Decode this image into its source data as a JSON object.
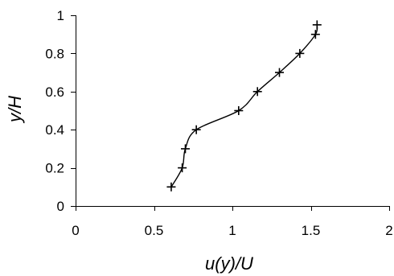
{
  "chart_data": {
    "type": "line",
    "xlabel": "u(y)/U",
    "ylabel": "y/H",
    "xlim": [
      0,
      2
    ],
    "ylim": [
      0,
      1
    ],
    "x_ticks": [
      "0",
      "0.5",
      "1",
      "1.5",
      "2"
    ],
    "y_ticks": [
      "0",
      "0.2",
      "0.4",
      "0.6",
      "0.8",
      "1"
    ],
    "grid": false,
    "legend": "none",
    "marker": "plus",
    "line_style": "smooth",
    "series": [
      {
        "x": [
          0.61,
          0.68,
          0.7,
          0.77,
          1.04,
          1.16,
          1.3,
          1.43,
          1.53,
          1.54
        ],
        "y": [
          0.1,
          0.2,
          0.3,
          0.4,
          0.5,
          0.6,
          0.7,
          0.8,
          0.9,
          0.95
        ]
      }
    ]
  },
  "colors": {
    "axis": "#000000",
    "series": "#000000",
    "background": "#ffffff"
  }
}
